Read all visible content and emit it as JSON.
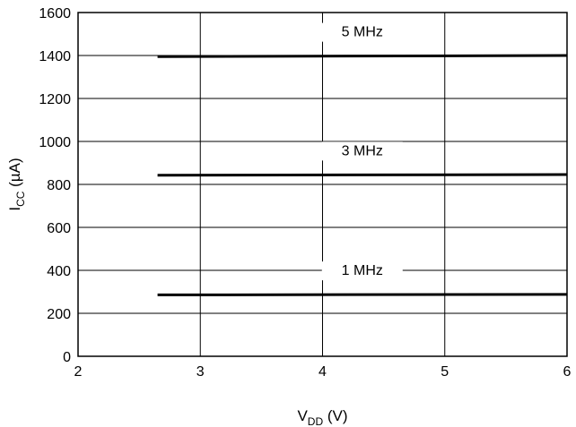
{
  "chart_data": {
    "type": "line",
    "title": "",
    "xlabel": {
      "main": "V",
      "sub": "DD",
      "unit": " (V)"
    },
    "ylabel": {
      "main": "I",
      "sub": "CC",
      "unit": " (µA)"
    },
    "xlim": [
      2,
      6
    ],
    "ylim": [
      0,
      1600
    ],
    "xticks": [
      2,
      3,
      4,
      5,
      6
    ],
    "yticks": [
      0,
      200,
      400,
      600,
      800,
      1000,
      1200,
      1400,
      1600
    ],
    "grid": true,
    "series": [
      {
        "name": "5 MHz",
        "x": [
          2.65,
          6.0
        ],
        "y": [
          1395,
          1400
        ],
        "color": "#000000"
      },
      {
        "name": "3 MHz",
        "x": [
          2.65,
          6.0
        ],
        "y": [
          843,
          846
        ],
        "color": "#000000"
      },
      {
        "name": "1 MHz",
        "x": [
          2.65,
          6.0
        ],
        "y": [
          286,
          288
        ],
        "color": "#000000"
      }
    ]
  }
}
